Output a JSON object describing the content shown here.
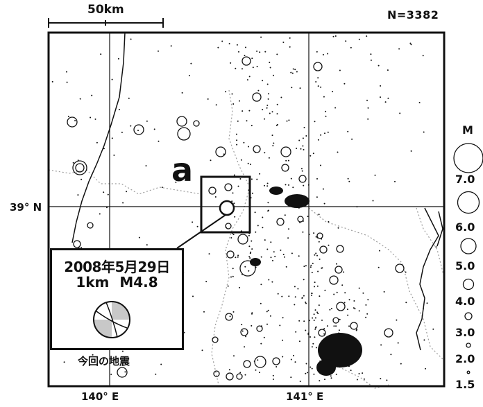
{
  "scale_bar": {
    "label": "50km"
  },
  "event_count": "N=3382",
  "latitude_label": "39° N",
  "longitude_labels": [
    "140° E",
    "141° E"
  ],
  "region_marker": "a",
  "magnitude_legend": {
    "title": "M",
    "values": [
      "7.0",
      "6.0",
      "5.0",
      "4.0",
      "3.0",
      "2.0",
      "1.5"
    ]
  },
  "callout": {
    "date": "2008年5月29日",
    "depth_magnitude": "1km M4.8"
  },
  "caption": "今回の地震",
  "colors": {
    "ink": "#111111",
    "prefecture_boundary": "#9a9a9a",
    "beachball_fill": "#c8c8c8"
  }
}
